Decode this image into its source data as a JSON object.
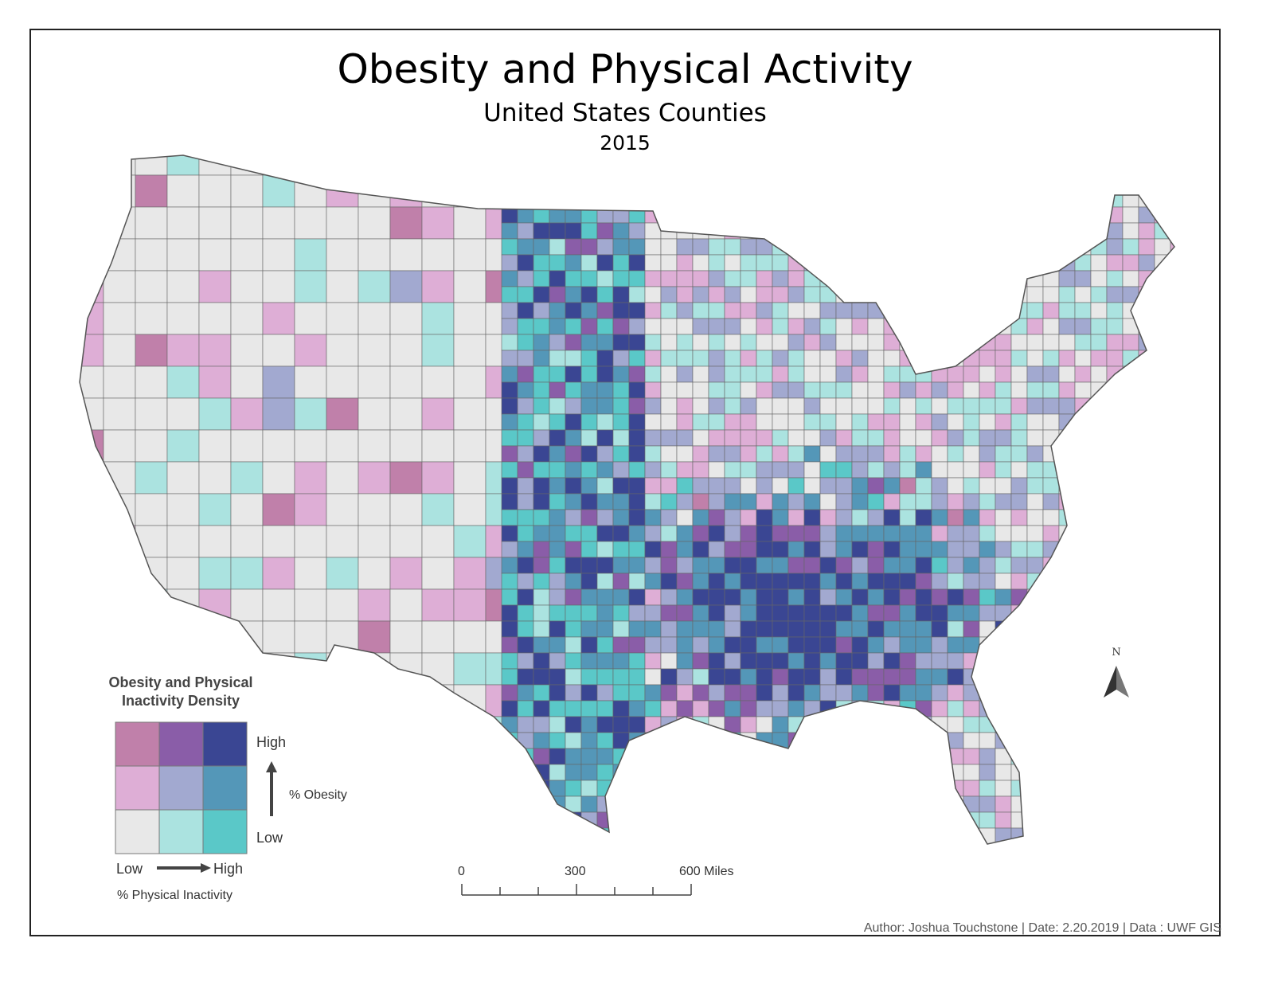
{
  "title": "Obesity and Physical Activity",
  "subtitle": "United States Counties",
  "year": "2015",
  "legend": {
    "title_line1": "Obesity and Physical",
    "title_line2": "Inactivity Density",
    "y_high": "High",
    "y_low": "Low",
    "y_axis": "% Obesity",
    "x_low": "Low",
    "x_high": "High",
    "x_axis": "% Physical Inactivity",
    "colors": [
      [
        "#c080aa",
        "#8a5da8",
        "#3a4693"
      ],
      [
        "#deaed6",
        "#a2a9d0",
        "#5497b8"
      ],
      [
        "#e8e8e8",
        "#abe3e0",
        "#5ac8c8"
      ]
    ]
  },
  "scale_bar": {
    "labels": [
      "0",
      "300",
      "600 Miles"
    ]
  },
  "north_arrow": {
    "label": "N"
  },
  "footer": "Author: Joshua Touchstone | Date: 2.20.2019 | Data : UWF GIS"
}
